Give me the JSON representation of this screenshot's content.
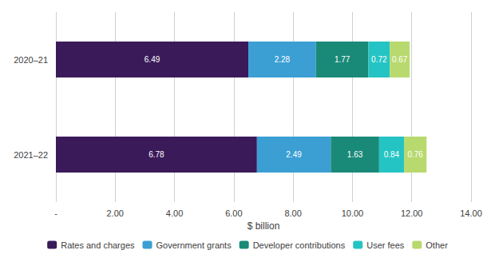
{
  "chart_data": {
    "type": "bar",
    "orientation": "horizontal",
    "stacked": true,
    "categories": [
      "2020–21",
      "2021–22"
    ],
    "series": [
      {
        "name": "Rates and charges",
        "color": "#3b1a5a",
        "values": [
          6.49,
          6.78
        ]
      },
      {
        "name": "Government grants",
        "color": "#3b9fd4",
        "values": [
          2.28,
          2.49
        ]
      },
      {
        "name": "Developer contributions",
        "color": "#1a8a78",
        "values": [
          1.77,
          1.63
        ]
      },
      {
        "name": "User fees",
        "color": "#25c4c4",
        "values": [
          0.72,
          0.84
        ]
      },
      {
        "name": "Other",
        "color": "#b8d96e",
        "values": [
          0.67,
          0.76
        ]
      }
    ],
    "xlabel": "$ billion",
    "xlim": [
      0,
      14
    ],
    "xticks": [
      {
        "value": 0,
        "label": "-"
      },
      {
        "value": 2.0,
        "label": "2.00"
      },
      {
        "value": 4.0,
        "label": "4.00"
      },
      {
        "value": 6.0,
        "label": "6.00"
      },
      {
        "value": 8.0,
        "label": "8.00"
      },
      {
        "value": 10.0,
        "label": "10.00"
      },
      {
        "value": 12.0,
        "label": "12.00"
      },
      {
        "value": 14.0,
        "label": "14.00"
      }
    ],
    "grid": true,
    "legend": "bottom",
    "data_labels": true
  }
}
